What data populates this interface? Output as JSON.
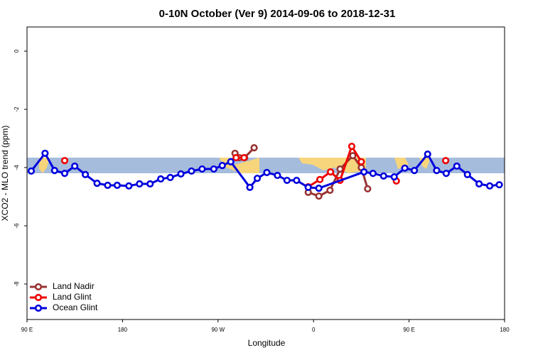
{
  "chart_data": {
    "type": "line",
    "title": "0-10N October (Ver 9)   2014-09-06 to 2018-12-31",
    "x_label": "Longitude",
    "y_label": "XCO2 - MLO trend (ppm)",
    "xlim": [
      90,
      540
    ],
    "ylim": [
      -9.22,
      0.83
    ],
    "xticks": [
      {
        "value": 90,
        "label": "90 E"
      },
      {
        "value": 180,
        "label": "180"
      },
      {
        "value": 270,
        "label": "90 W"
      },
      {
        "value": 360,
        "label": "0"
      },
      {
        "value": 450,
        "label": "90 E"
      },
      {
        "value": 540,
        "label": "180"
      }
    ],
    "yticks": [
      0,
      -2,
      -4,
      -6,
      -8
    ],
    "legend": "bottom-left",
    "series": [
      {
        "name": "Land Nadir",
        "color": "#993333",
        "x": [
          286,
          290,
          295,
          304,
          330,
          355,
          365,
          375.5,
          385,
          397,
          405,
          411
        ],
        "values": [
          -3.51,
          -3.66,
          -3.66,
          -3.32,
          null,
          -4.85,
          -4.98,
          -4.78,
          -4.05,
          -3.59,
          -4.0,
          -4.73
        ]
      },
      {
        "name": "Land Glint",
        "color": "#ee0000",
        "x": [
          125.5,
          200,
          287,
          294.5,
          330,
          355,
          366,
          376,
          385,
          396,
          405,
          420,
          438,
          460,
          484.5
        ],
        "values": [
          -3.76,
          null,
          -3.66,
          -3.66,
          null,
          -4.66,
          -4.41,
          -4.15,
          -4.44,
          -3.27,
          -3.8,
          null,
          -4.46,
          null,
          -3.76
        ]
      },
      {
        "name": "Ocean Glint",
        "color": "#0000dd",
        "x": [
          94,
          107,
          116,
          125.5,
          135,
          145,
          156,
          166,
          175,
          186,
          196,
          206,
          216,
          225,
          235,
          245,
          255,
          266,
          274,
          282,
          300,
          307,
          316,
          326,
          335,
          344,
          355,
          365,
          407.5,
          416,
          426,
          436,
          446,
          455,
          467.5,
          476,
          485,
          495,
          505,
          516,
          526,
          535
        ],
        "values": [
          -4.12,
          -3.51,
          -4.1,
          -4.2,
          -3.95,
          -4.24,
          -4.54,
          -4.61,
          -4.61,
          -4.63,
          -4.56,
          -4.56,
          -4.39,
          -4.34,
          -4.22,
          -4.12,
          -4.05,
          -4.05,
          -3.93,
          -3.8,
          -4.68,
          -4.37,
          -4.17,
          -4.27,
          -4.44,
          -4.44,
          -4.68,
          -4.71,
          -4.15,
          -4.2,
          -4.29,
          -4.32,
          -4.02,
          -4.1,
          -3.54,
          -4.1,
          -4.2,
          -3.95,
          -4.24,
          -4.56,
          -4.63,
          -4.59
        ]
      }
    ]
  }
}
